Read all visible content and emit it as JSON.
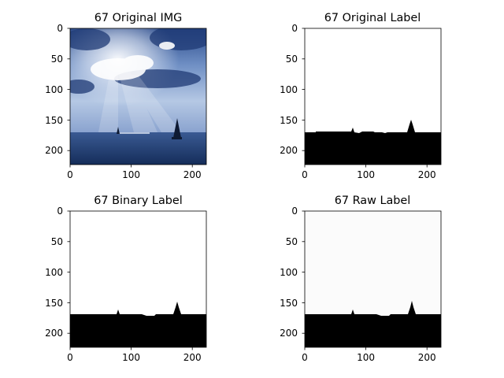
{
  "figure": {
    "background": "#ffffff"
  },
  "chart_data": [
    {
      "type": "image",
      "title": "67 Original IMG",
      "xlim": [
        0,
        223
      ],
      "ylim": [
        223,
        0
      ],
      "xticks": [
        0,
        100,
        200
      ],
      "xtick_labels": [
        "0",
        "100",
        "200"
      ],
      "yticks": [
        0,
        50,
        100,
        150,
        200
      ],
      "ytick_labels": [
        "0",
        "50",
        "100",
        "150",
        "200"
      ],
      "content": "photograph of sky with sun rays over the sea with two sailboats",
      "horizon_row": 170,
      "colors": {
        "sky_top": "#2f5291",
        "sky_light": "#dde8f5",
        "sea": "#1f3c70"
      }
    },
    {
      "type": "image",
      "title": "67 Original Label",
      "xlim": [
        0,
        223
      ],
      "ylim": [
        223,
        0
      ],
      "xticks": [
        0,
        100,
        200
      ],
      "xtick_labels": [
        "0",
        "100",
        "200"
      ],
      "yticks": [
        0,
        50,
        100,
        150,
        200
      ],
      "ytick_labels": [
        "0",
        "50",
        "100",
        "150",
        "200"
      ],
      "content": "binary mask: white sky above, black sea below horizon with sailboat peaks",
      "horizon_row": 170,
      "colors": {
        "upper": "#ffffff",
        "lower": "#000000"
      }
    },
    {
      "type": "image",
      "title": "67 Binary Label",
      "xlim": [
        0,
        223
      ],
      "ylim": [
        223,
        0
      ],
      "xticks": [
        0,
        100,
        200
      ],
      "xtick_labels": [
        "0",
        "100",
        "200"
      ],
      "yticks": [
        0,
        50,
        100,
        150,
        200
      ],
      "ytick_labels": [
        "0",
        "50",
        "100",
        "150",
        "200"
      ],
      "content": "binary mask: white sky above, black sea below horizon with sailboat peaks",
      "horizon_row": 170,
      "colors": {
        "upper": "#ffffff",
        "lower": "#000000"
      }
    },
    {
      "type": "image",
      "title": "67 Raw Label",
      "xlim": [
        0,
        223
      ],
      "ylim": [
        223,
        0
      ],
      "xticks": [
        0,
        100,
        200
      ],
      "xtick_labels": [
        "0",
        "100",
        "200"
      ],
      "yticks": [
        0,
        50,
        100,
        150,
        200
      ],
      "ytick_labels": [
        "0",
        "50",
        "100",
        "150",
        "200"
      ],
      "content": "raw mask: near-white sky above, black sea below horizon with sailboat peaks",
      "horizon_row": 170,
      "colors": {
        "upper": "#fbfbfb",
        "lower": "#000000"
      }
    }
  ]
}
